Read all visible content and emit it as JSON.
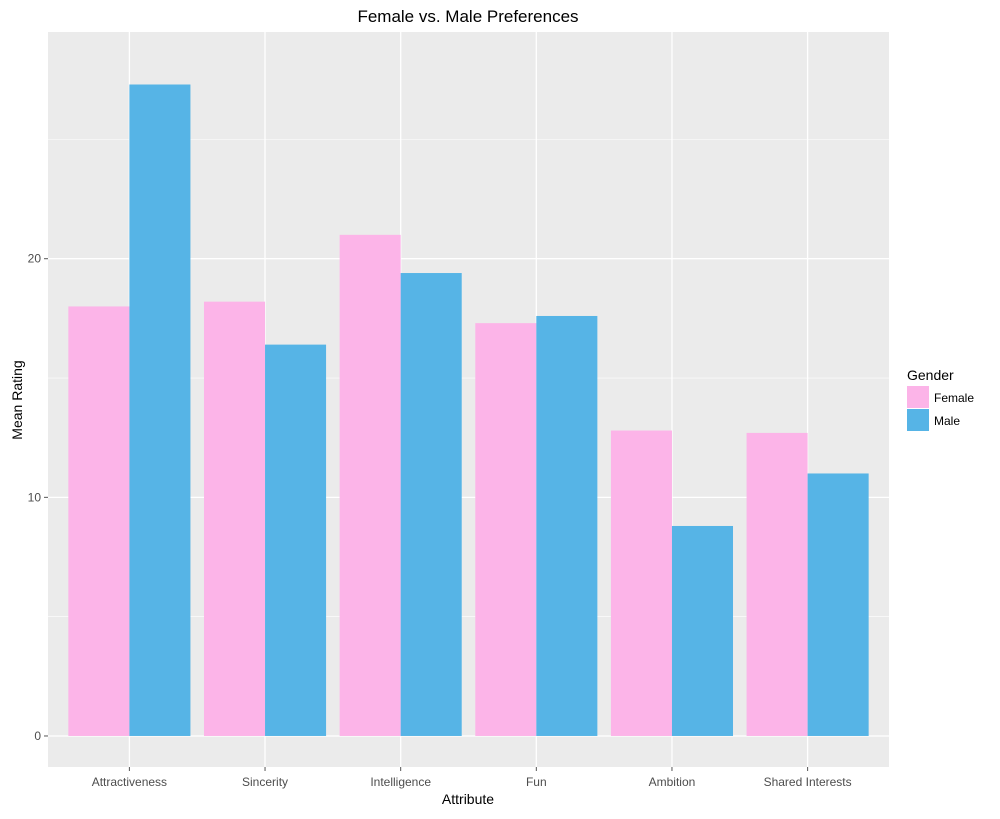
{
  "chart_data": {
    "type": "bar",
    "title": "Female vs. Male Preferences",
    "xlabel": "Attribute",
    "ylabel": "Mean Rating",
    "categories": [
      "Attractiveness",
      "Sincerity",
      "Intelligence",
      "Fun",
      "Ambition",
      "Shared Interests"
    ],
    "series": [
      {
        "name": "Female",
        "color": "#fcb4e8",
        "values": [
          18.0,
          18.2,
          21.0,
          17.3,
          12.8,
          12.7
        ]
      },
      {
        "name": "Male",
        "color": "#56b4e6",
        "values": [
          27.3,
          16.4,
          19.4,
          17.6,
          8.8,
          11.0
        ]
      }
    ],
    "ylim": [
      -1.3,
      29.5
    ],
    "yticks": [
      0,
      10,
      20
    ],
    "grid": true,
    "legend": {
      "title": "Gender",
      "position": "right"
    },
    "background_color": "#ebebeb",
    "grid_color": "#ffffff"
  }
}
